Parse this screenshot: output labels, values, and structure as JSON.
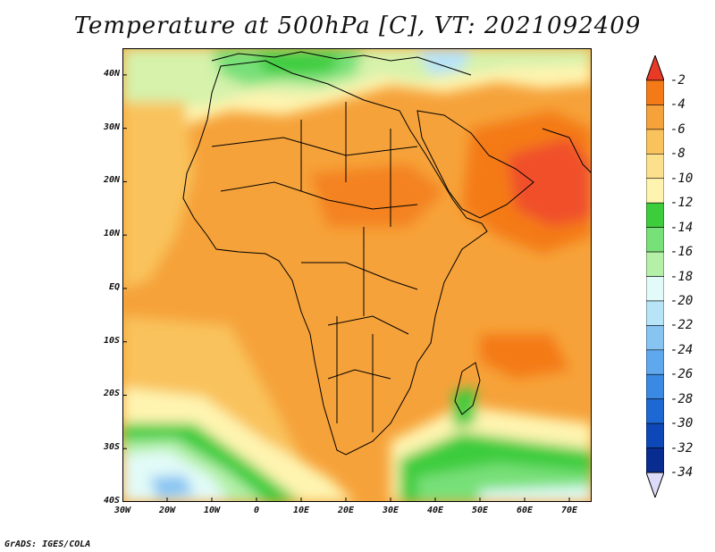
{
  "title": "Temperature at 500hPa [C], VT: 2021092409",
  "footer": "GrADS: IGES/COLA",
  "map": {
    "lon_range": [
      -30,
      75
    ],
    "lat_range": [
      -40,
      45
    ],
    "lat_ticks": [
      {
        "value": 40,
        "label": "40N"
      },
      {
        "value": 30,
        "label": "30N"
      },
      {
        "value": 20,
        "label": "20N"
      },
      {
        "value": 10,
        "label": "10N"
      },
      {
        "value": 0,
        "label": "EQ"
      },
      {
        "value": -10,
        "label": "10S"
      },
      {
        "value": -20,
        "label": "20S"
      },
      {
        "value": -30,
        "label": "30S"
      },
      {
        "value": -40,
        "label": "40S"
      }
    ],
    "lon_ticks": [
      {
        "value": -30,
        "label": "30W"
      },
      {
        "value": -20,
        "label": "20W"
      },
      {
        "value": -10,
        "label": "10W"
      },
      {
        "value": 0,
        "label": "0"
      },
      {
        "value": 10,
        "label": "10E"
      },
      {
        "value": 20,
        "label": "20E"
      },
      {
        "value": 30,
        "label": "30E"
      },
      {
        "value": 40,
        "label": "40E"
      },
      {
        "value": 50,
        "label": "50E"
      },
      {
        "value": 60,
        "label": "60E"
      },
      {
        "value": 70,
        "label": "70E"
      }
    ]
  },
  "colorbar": {
    "levels": [
      "-2",
      "-4",
      "-6",
      "-8",
      "-10",
      "-12",
      "-14",
      "-16",
      "-18",
      "-20",
      "-22",
      "-24",
      "-26",
      "-28",
      "-30",
      "-32",
      "-34"
    ],
    "colors": [
      "#f0502a",
      "#f47a18",
      "#f6a23a",
      "#f9c25c",
      "#fde08e",
      "#fef4b0",
      "#3ccc3c",
      "#78e078",
      "#b4f0a8",
      "#e2fbf8",
      "#b8e4f8",
      "#88c4f2",
      "#60a8ee",
      "#3a8ae4",
      "#1e68d4",
      "#0e48b8",
      "#082c90",
      "#060c68"
    ],
    "top_arrow_color": "#e83a24",
    "bottom_arrow_color": "#dcdcf8"
  }
}
